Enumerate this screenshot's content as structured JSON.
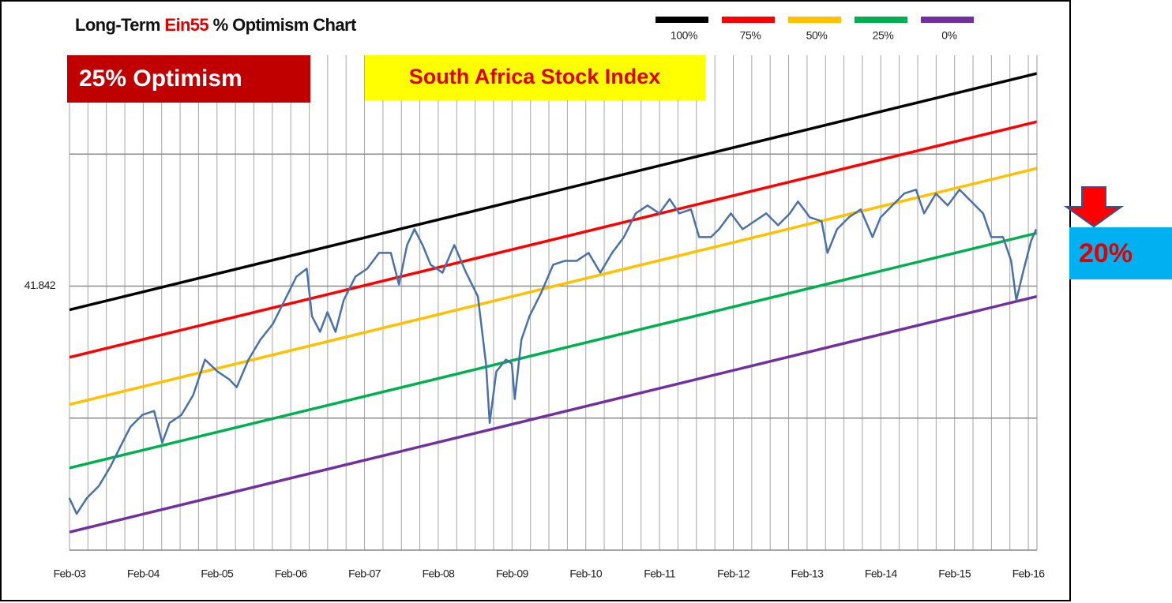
{
  "chart_data": {
    "type": "line",
    "title": {
      "prefix": "Long-Term",
      "highlight": "Ein55",
      "suffix": "% Optimism Chart"
    },
    "annotations": {
      "badge": "25% Optimism",
      "label": "South Africa Stock Index",
      "callout": "20%"
    },
    "log_scale": true,
    "grid": true,
    "legend": "top-right",
    "xlim": [
      2003.083,
      2016.2
    ],
    "ylim": [
      10.4605,
      140.6
    ],
    "xticks": [
      {
        "value": 2003.083,
        "label": "Feb-03"
      },
      {
        "value": 2004.083,
        "label": "Feb-04"
      },
      {
        "value": 2005.083,
        "label": "Feb-05"
      },
      {
        "value": 2006.083,
        "label": "Feb-06"
      },
      {
        "value": 2007.083,
        "label": "Feb-07"
      },
      {
        "value": 2008.083,
        "label": "Feb-08"
      },
      {
        "value": 2009.083,
        "label": "Feb-09"
      },
      {
        "value": 2010.083,
        "label": "Feb-10"
      },
      {
        "value": 2011.083,
        "label": "Feb-11"
      },
      {
        "value": 2012.083,
        "label": "Feb-12"
      },
      {
        "value": 2013.083,
        "label": "Feb-13"
      },
      {
        "value": 2014.083,
        "label": "Feb-14"
      },
      {
        "value": 2015.083,
        "label": "Feb-15"
      },
      {
        "value": 2016.083,
        "label": "Feb-16"
      }
    ],
    "yticks": [
      {
        "value": 20.921,
        "label": null
      },
      41.842,
      {
        "value": 83.684,
        "label": null
      }
    ],
    "series": [
      {
        "name": "100%",
        "color": "#000000",
        "x": [
          2003.083,
          2016.2
        ],
        "values": [
          36.94,
          127.8
        ]
      },
      {
        "name": "75%",
        "color": "#ff0000",
        "x": [
          2003.083,
          2016.2
        ],
        "values": [
          28.79,
          99.2
        ]
      },
      {
        "name": "50%",
        "color": "#ffc000",
        "x": [
          2003.083,
          2016.2
        ],
        "values": [
          22.47,
          77.66
        ]
      },
      {
        "name": "25%",
        "color": "#00b050",
        "x": [
          2003.083,
          2016.2
        ],
        "values": [
          16.1,
          55.27
        ]
      },
      {
        "name": "0%",
        "color": "#7030a0",
        "x": [
          2003.083,
          2016.2
        ],
        "values": [
          11.5,
          39.64
        ]
      },
      {
        "color": "#4a70a8",
        "x": [
          2003.08,
          2003.18,
          2003.32,
          2003.48,
          2003.64,
          2003.8,
          2003.91,
          2004.07,
          2004.23,
          2004.34,
          2004.44,
          2004.6,
          2004.76,
          2004.92,
          2005.09,
          2005.25,
          2005.35,
          2005.51,
          2005.67,
          2005.84,
          2006.0,
          2006.16,
          2006.3,
          2006.37,
          2006.48,
          2006.58,
          2006.69,
          2006.8,
          2006.96,
          2007.12,
          2007.28,
          2007.44,
          2007.55,
          2007.66,
          2007.76,
          2007.87,
          2007.98,
          2008.14,
          2008.3,
          2008.46,
          2008.62,
          2008.73,
          2008.78,
          2008.87,
          2009.0,
          2009.08,
          2009.12,
          2009.21,
          2009.32,
          2009.48,
          2009.64,
          2009.8,
          2009.96,
          2010.12,
          2010.28,
          2010.44,
          2010.6,
          2010.76,
          2010.92,
          2011.08,
          2011.22,
          2011.35,
          2011.51,
          2011.62,
          2011.78,
          2011.89,
          2012.05,
          2012.21,
          2012.37,
          2012.53,
          2012.69,
          2012.85,
          2012.96,
          2013.12,
          2013.28,
          2013.36,
          2013.49,
          2013.65,
          2013.81,
          2013.97,
          2014.08,
          2014.24,
          2014.4,
          2014.56,
          2014.67,
          2014.83,
          2014.99,
          2015.15,
          2015.31,
          2015.47,
          2015.58,
          2015.74,
          2015.85,
          2015.92,
          2016.01,
          2016.12,
          2016.19
        ],
        "values": [
          13.76,
          12.66,
          13.76,
          14.64,
          16.24,
          18.39,
          19.99,
          21.27,
          21.72,
          18.39,
          20.4,
          21.27,
          23.6,
          28.44,
          26.72,
          25.63,
          24.6,
          28.44,
          31.56,
          34.29,
          38.83,
          43.98,
          45.85,
          35.74,
          32.9,
          36.49,
          32.9,
          38.83,
          43.98,
          45.85,
          49.81,
          49.81,
          42.19,
          51.91,
          56.41,
          51.91,
          46.8,
          44.9,
          51.91,
          44.9,
          39.64,
          27.85,
          20.4,
          26.72,
          28.44,
          27.85,
          23.12,
          31.56,
          35.74,
          40.47,
          46.8,
          47.78,
          47.78,
          49.81,
          44.9,
          49.81,
          54.12,
          61.3,
          63.9,
          61.3,
          66.06,
          61.3,
          62.59,
          54.12,
          54.12,
          56.41,
          61.3,
          56.41,
          58.8,
          61.3,
          57.6,
          61.3,
          65.24,
          60.04,
          58.8,
          49.81,
          56.41,
          60.04,
          62.59,
          54.12,
          60.04,
          63.9,
          68.02,
          69.43,
          61.3,
          68.02,
          63.9,
          69.43,
          65.24,
          61.3,
          54.12,
          54.12,
          47.78,
          38.83,
          44.9,
          53.0,
          56.41
        ]
      }
    ]
  }
}
